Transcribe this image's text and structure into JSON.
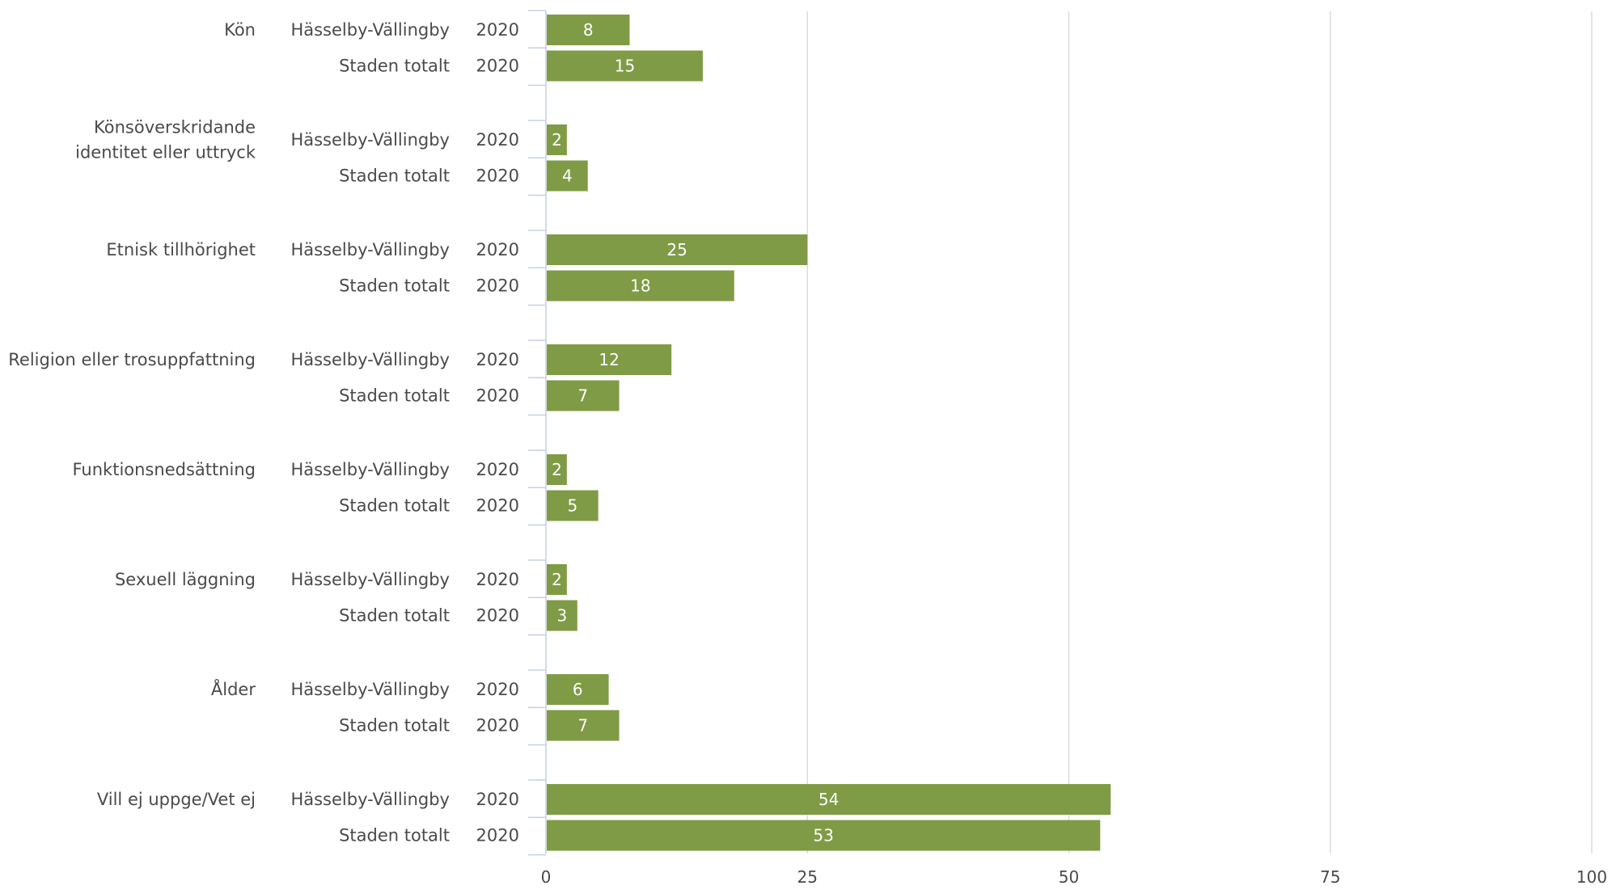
{
  "chart_data": {
    "type": "bar",
    "orientation": "horizontal",
    "title": "",
    "xlabel": "",
    "ylabel": "",
    "xlim": [
      0,
      100
    ],
    "x_ticks": [
      0,
      25,
      50,
      75,
      100
    ],
    "grid": true,
    "legend": "none",
    "bar_color": "#7f9b45",
    "groups": [
      {
        "category_lines": [
          "Kön"
        ],
        "rows": [
          {
            "label": "Hässelby-Vällingby",
            "year": "2020",
            "value": 8
          },
          {
            "label": "Staden totalt",
            "year": "2020",
            "value": 15
          }
        ]
      },
      {
        "category_lines": [
          "Könsöverskridande",
          "identitet eller uttryck"
        ],
        "rows": [
          {
            "label": "Hässelby-Vällingby",
            "year": "2020",
            "value": 2
          },
          {
            "label": "Staden totalt",
            "year": "2020",
            "value": 4
          }
        ]
      },
      {
        "category_lines": [
          "Etnisk tillhörighet"
        ],
        "rows": [
          {
            "label": "Hässelby-Vällingby",
            "year": "2020",
            "value": 25
          },
          {
            "label": "Staden totalt",
            "year": "2020",
            "value": 18
          }
        ]
      },
      {
        "category_lines": [
          "Religion eller trosuppfattning"
        ],
        "rows": [
          {
            "label": "Hässelby-Vällingby",
            "year": "2020",
            "value": 12
          },
          {
            "label": "Staden totalt",
            "year": "2020",
            "value": 7
          }
        ]
      },
      {
        "category_lines": [
          "Funktionsnedsättning"
        ],
        "rows": [
          {
            "label": "Hässelby-Vällingby",
            "year": "2020",
            "value": 2
          },
          {
            "label": "Staden totalt",
            "year": "2020",
            "value": 5
          }
        ]
      },
      {
        "category_lines": [
          "Sexuell läggning"
        ],
        "rows": [
          {
            "label": "Hässelby-Vällingby",
            "year": "2020",
            "value": 2
          },
          {
            "label": "Staden totalt",
            "year": "2020",
            "value": 3
          }
        ]
      },
      {
        "category_lines": [
          "Ålder"
        ],
        "rows": [
          {
            "label": "Hässelby-Vällingby",
            "year": "2020",
            "value": 6
          },
          {
            "label": "Staden totalt",
            "year": "2020",
            "value": 7
          }
        ]
      },
      {
        "category_lines": [
          "Vill ej uppge/Vet ej"
        ],
        "rows": [
          {
            "label": "Hässelby-Vällingby",
            "year": "2020",
            "value": 54
          },
          {
            "label": "Staden totalt",
            "year": "2020",
            "value": 53
          }
        ]
      }
    ]
  }
}
